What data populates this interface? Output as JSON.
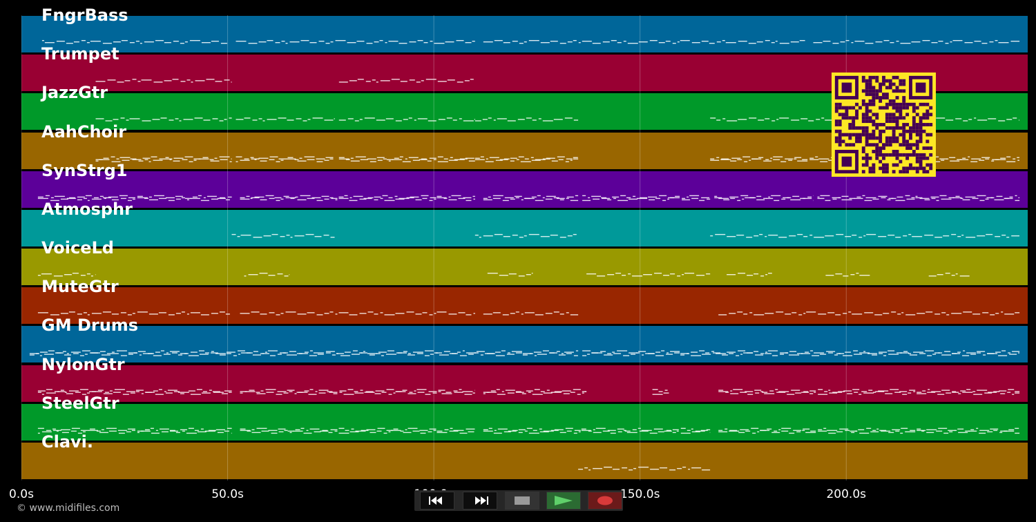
{
  "tracks": [
    {
      "name": "FngrBass",
      "color": "#006699",
      "notes": [
        [
          5,
          50
        ],
        [
          52,
          110
        ],
        [
          112,
          190
        ],
        [
          192,
          242
        ]
      ],
      "rows": 1
    },
    {
      "name": "Trumpet",
      "color": "#990033",
      "notes": [
        [
          18,
          51
        ],
        [
          77,
          110
        ]
      ],
      "rows": 1
    },
    {
      "name": "JazzGtr",
      "color": "#009929",
      "notes": [
        [
          18,
          51
        ],
        [
          52,
          76
        ],
        [
          77,
          110
        ],
        [
          110,
          135
        ],
        [
          167,
          242
        ]
      ],
      "rows": 1
    },
    {
      "name": "AahChoir",
      "color": "#996600",
      "notes": [
        [
          18,
          51
        ],
        [
          52,
          76
        ],
        [
          77,
          110
        ],
        [
          110,
          135
        ],
        [
          167,
          242
        ]
      ],
      "rows": 2
    },
    {
      "name": "SynStrg1",
      "color": "#5c0099",
      "notes": [
        [
          4,
          51
        ],
        [
          53,
          110
        ],
        [
          112,
          135
        ],
        [
          136,
          167
        ],
        [
          168,
          192
        ],
        [
          193,
          242
        ]
      ],
      "rows": 2
    },
    {
      "name": "Atmosphr",
      "color": "#009999",
      "notes": [
        [
          51,
          76
        ],
        [
          110,
          135
        ],
        [
          167,
          242
        ]
      ],
      "rows": 1
    },
    {
      "name": "VoiceLd",
      "color": "#999900",
      "notes": [
        [
          4,
          18
        ],
        [
          54,
          65
        ],
        [
          113,
          124
        ],
        [
          137,
          167
        ],
        [
          171,
          182
        ],
        [
          195,
          206
        ],
        [
          220,
          230
        ]
      ],
      "rows": 1
    },
    {
      "name": "MuteGtr",
      "color": "#992600",
      "notes": [
        [
          4,
          51
        ],
        [
          53,
          110
        ],
        [
          112,
          135
        ],
        [
          169,
          242
        ]
      ],
      "rows": 1
    },
    {
      "name": "GM Drums",
      "color": "#006699",
      "notes": [
        [
          2,
          135
        ],
        [
          136,
          242
        ]
      ],
      "rows": 2
    },
    {
      "name": "NylonGtr",
      "color": "#990033",
      "notes": [
        [
          4,
          51
        ],
        [
          53,
          110
        ],
        [
          112,
          137
        ],
        [
          153,
          157
        ],
        [
          169,
          242
        ]
      ],
      "rows": 2
    },
    {
      "name": "SteelGtr",
      "color": "#009929",
      "notes": [
        [
          4,
          51
        ],
        [
          53,
          110
        ],
        [
          112,
          167
        ],
        [
          169,
          242
        ]
      ],
      "rows": 2
    },
    {
      "name": "Clavi.",
      "color": "#996600",
      "notes": [
        [
          135,
          167
        ]
      ],
      "rows": 1
    }
  ],
  "timeline": {
    "max_seconds": 244,
    "ticks": [
      {
        "value": 0,
        "label": "0.0s"
      },
      {
        "value": 50,
        "label": "50.0s"
      },
      {
        "value": 100,
        "label": "100.0s"
      },
      {
        "value": 150,
        "label": "150.0s"
      },
      {
        "value": 200,
        "label": "200.0s"
      }
    ]
  },
  "copyright": "© www.midifiles.com",
  "transport": {
    "rewind_icon": "rewind-icon",
    "fast_forward_icon": "fast-forward-icon",
    "stop_icon": "stop-icon",
    "play_icon": "play-icon",
    "record_icon": "record-icon",
    "play_color": "#2b6b32",
    "record_color": "#6b1a1a"
  },
  "qr_colors": {
    "fg": "#440154",
    "bg": "#fde725"
  }
}
